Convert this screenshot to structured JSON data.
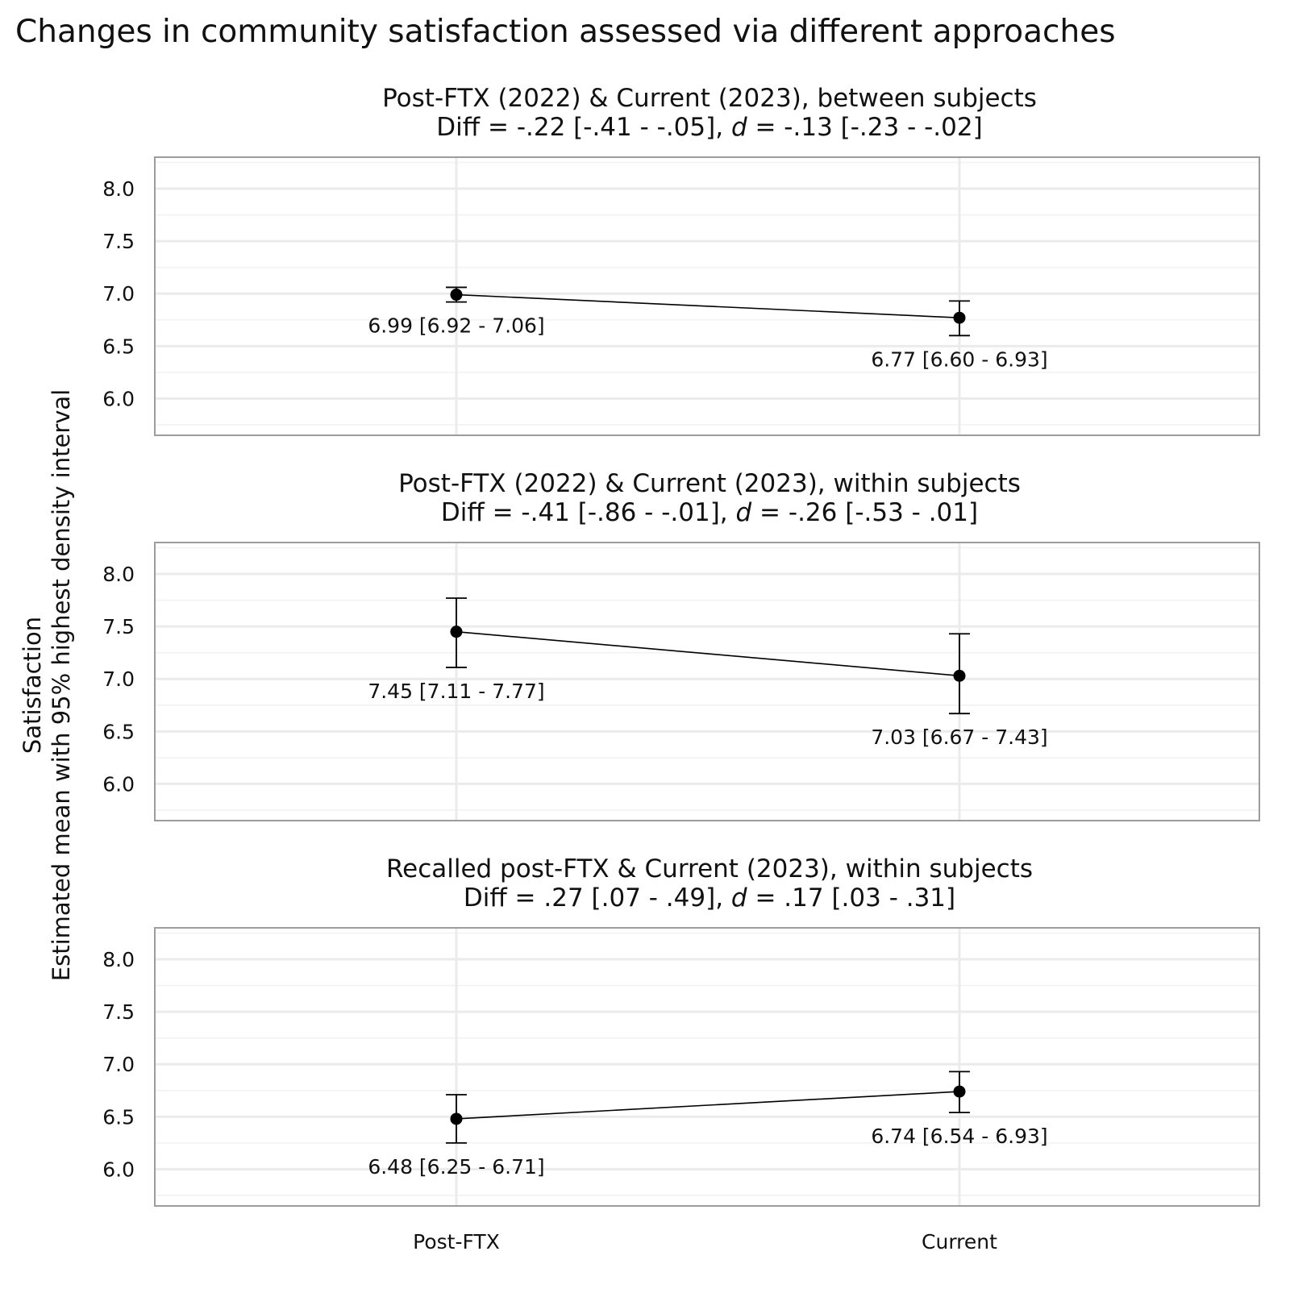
{
  "chart_data": {
    "type": "line",
    "title": "Changes in community satisfaction assessed via different approaches",
    "ylabel": "Satisfaction\nEstimated mean with 95% highest density interval",
    "xlabel": "",
    "categories": [
      "Post-FTX",
      "Current"
    ],
    "yticks": [
      6.0,
      6.5,
      7.0,
      7.5,
      8.0
    ],
    "ytick_labels": [
      "6.0",
      "6.5",
      "7.0",
      "7.5",
      "8.0"
    ],
    "ylim": [
      5.65,
      8.3
    ],
    "grid": true,
    "panels": [
      {
        "title_line1": "Post-FTX (2022) & Current (2023), between subjects",
        "title_line2_pre": "Diff = -.22 [-.41 - -.05], ",
        "title_line2_d": "d",
        "title_line2_post": " = -.13 [-.23 - -.02]",
        "points": [
          {
            "category": "Post-FTX",
            "mean": 6.99,
            "lower": 6.92,
            "upper": 7.06,
            "label": "6.99 [6.92 - 7.06]"
          },
          {
            "category": "Current",
            "mean": 6.77,
            "lower": 6.6,
            "upper": 6.93,
            "label": "6.77 [6.60 - 6.93]"
          }
        ]
      },
      {
        "title_line1": "Post-FTX (2022) & Current (2023), within subjects",
        "title_line2_pre": "Diff = -.41 [-.86 - -.01], ",
        "title_line2_d": "d",
        "title_line2_post": " = -.26 [-.53 - .01]",
        "points": [
          {
            "category": "Post-FTX",
            "mean": 7.45,
            "lower": 7.11,
            "upper": 7.77,
            "label": "7.45 [7.11 - 7.77]"
          },
          {
            "category": "Current",
            "mean": 7.03,
            "lower": 6.67,
            "upper": 7.43,
            "label": "7.03 [6.67 - 7.43]"
          }
        ]
      },
      {
        "title_line1": "Recalled post-FTX & Current (2023), within subjects",
        "title_line2_pre": "Diff = .27 [.07 - .49], ",
        "title_line2_d": "d",
        "title_line2_post": " = .17 [.03 - .31]",
        "points": [
          {
            "category": "Post-FTX",
            "mean": 6.48,
            "lower": 6.25,
            "upper": 6.71,
            "label": "6.48 [6.25 - 6.71]"
          },
          {
            "category": "Current",
            "mean": 6.74,
            "lower": 6.54,
            "upper": 6.93,
            "label": "6.74 [6.54 - 6.93]"
          }
        ]
      }
    ]
  }
}
